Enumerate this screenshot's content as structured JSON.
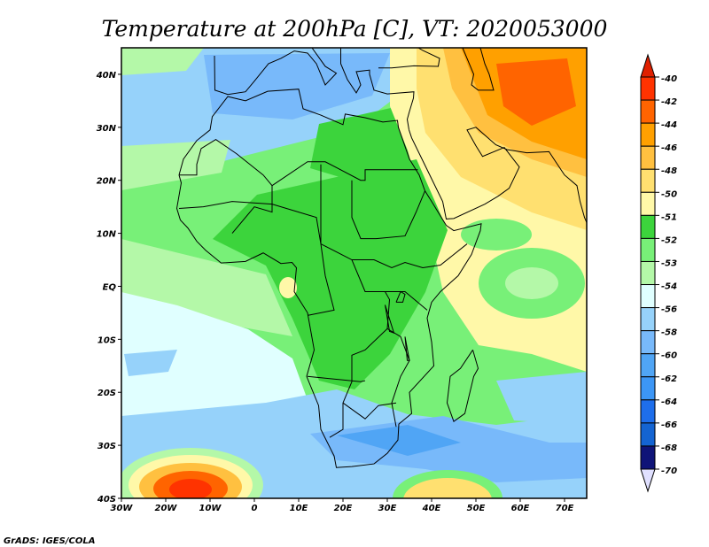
{
  "title": "Temperature at 200hPa [C], VT: 2020053000",
  "credit": "GrADS: IGES/COLA",
  "chart_data": {
    "type": "heatmap",
    "title": "Temperature at 200hPa [C], VT: 2020053000",
    "units": "C",
    "lon_range": [
      -30,
      75
    ],
    "lat_range": [
      -40,
      45
    ],
    "x_ticks": [
      "30W",
      "20W",
      "10W",
      "0",
      "10E",
      "20E",
      "30E",
      "40E",
      "50E",
      "60E",
      "70E"
    ],
    "y_ticks": [
      "40N",
      "30N",
      "20N",
      "10N",
      "EQ",
      "10S",
      "20S",
      "30S",
      "40S"
    ],
    "colorbar": {
      "labels": [
        "-40",
        "-42",
        "-44",
        "-46",
        "-48",
        "-50",
        "-51",
        "-52",
        "-53",
        "-54",
        "-56",
        "-58",
        "-60",
        "-62",
        "-64",
        "-66",
        "-68",
        "-70"
      ],
      "colors": [
        "#ff3300",
        "#ff6400",
        "#ffa000",
        "#ffc040",
        "#ffe070",
        "#fff8a8",
        "#3cd43c",
        "#78f078",
        "#b4f8a8",
        "#e0ffff",
        "#96d2fa",
        "#78b9fa",
        "#50a5f5",
        "#3c96f5",
        "#1e6eeb",
        "#1464d2",
        "#0f1478"
      ],
      "over_color": "#e02000",
      "under_color": "#e0e0ff"
    }
  }
}
